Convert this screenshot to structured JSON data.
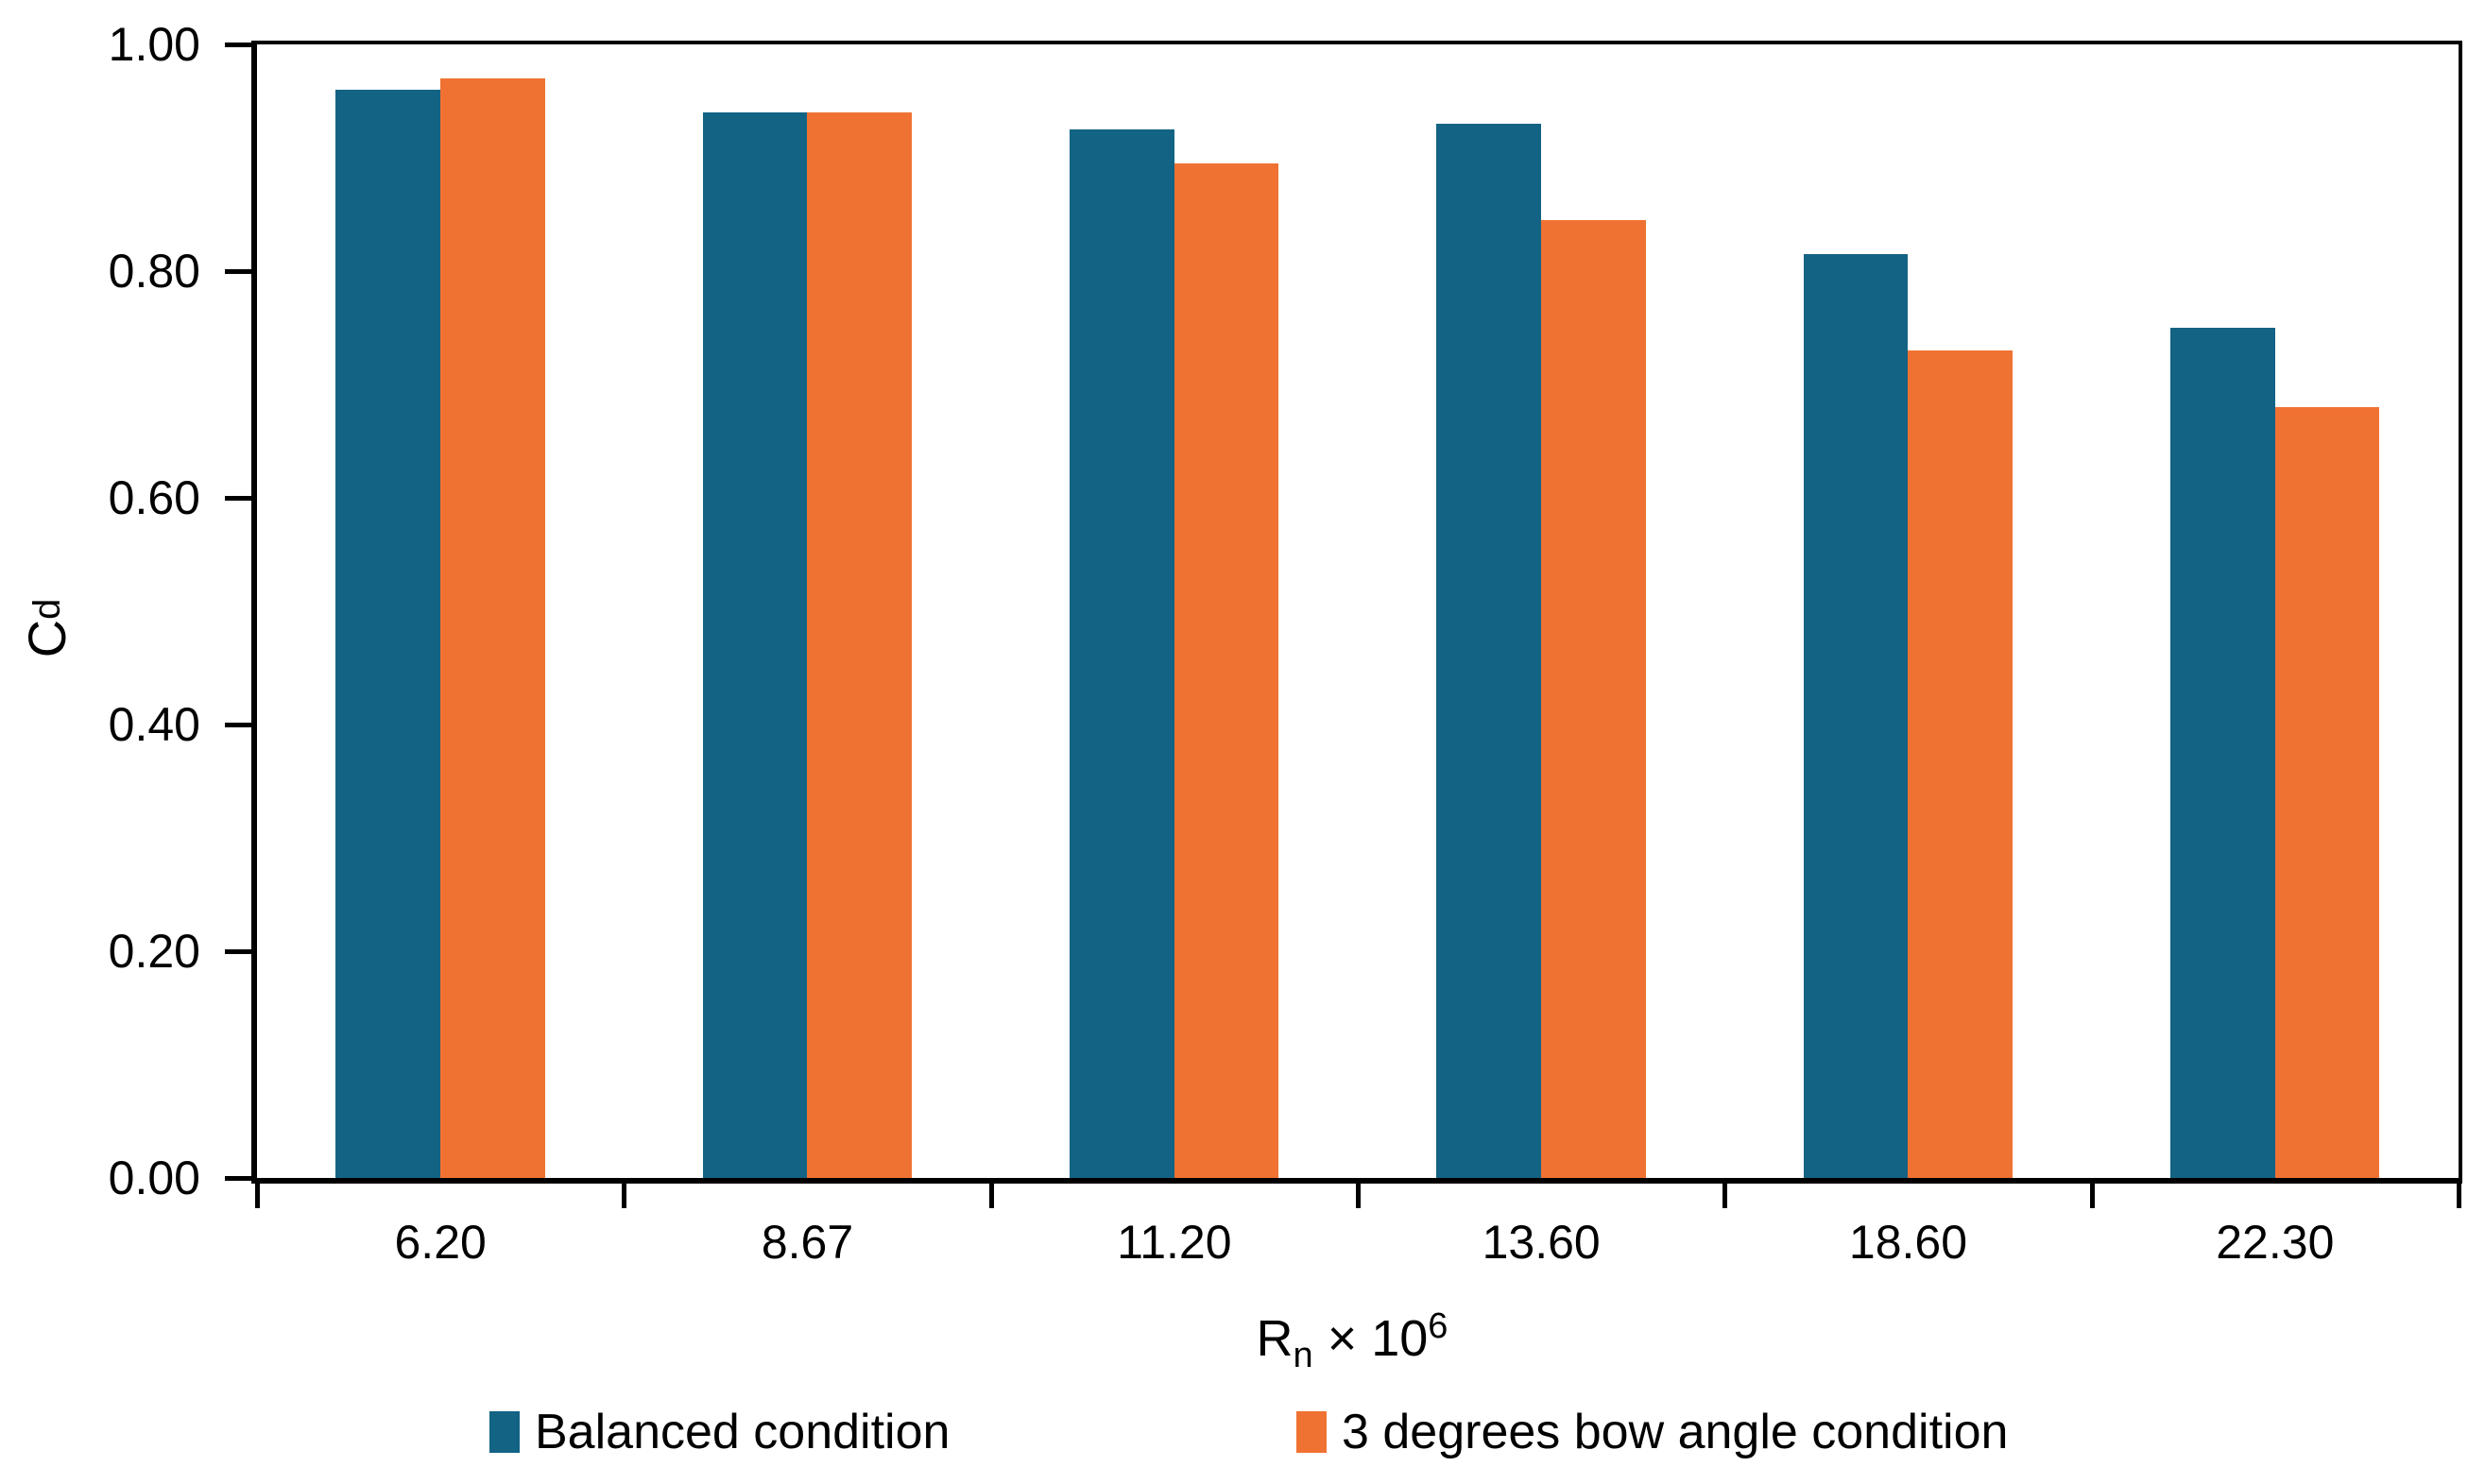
{
  "chart_data": {
    "type": "bar",
    "categories": [
      "6.20",
      "8.67",
      "11.20",
      "13.60",
      "18.60",
      "22.30"
    ],
    "series": [
      {
        "name": "Balanced condition",
        "color": "#136385",
        "values": [
          0.96,
          0.94,
          0.925,
          0.93,
          0.815,
          0.75
        ]
      },
      {
        "name": "3 degrees bow angle condition",
        "color": "#F07232",
        "values": [
          0.97,
          0.94,
          0.895,
          0.845,
          0.73,
          0.68
        ]
      }
    ],
    "y_axis": {
      "label_base": "C",
      "label_sub": "d",
      "min": 0.0,
      "max": 1.0,
      "tick_step": 0.2,
      "tick_labels": [
        "1.00",
        "0.80",
        "0.60",
        "0.40",
        "0.20",
        "0.00"
      ]
    },
    "x_axis": {
      "label_base": "R",
      "label_sub": "n",
      "label_mid": " × 10",
      "label_sup": "6"
    },
    "legend_position": "bottom",
    "grid": false,
    "title": ""
  },
  "colors": {
    "series_balanced": "#136385",
    "series_bow_angle": "#F07232",
    "axis": "#000000",
    "background": "#FFFFFF"
  }
}
